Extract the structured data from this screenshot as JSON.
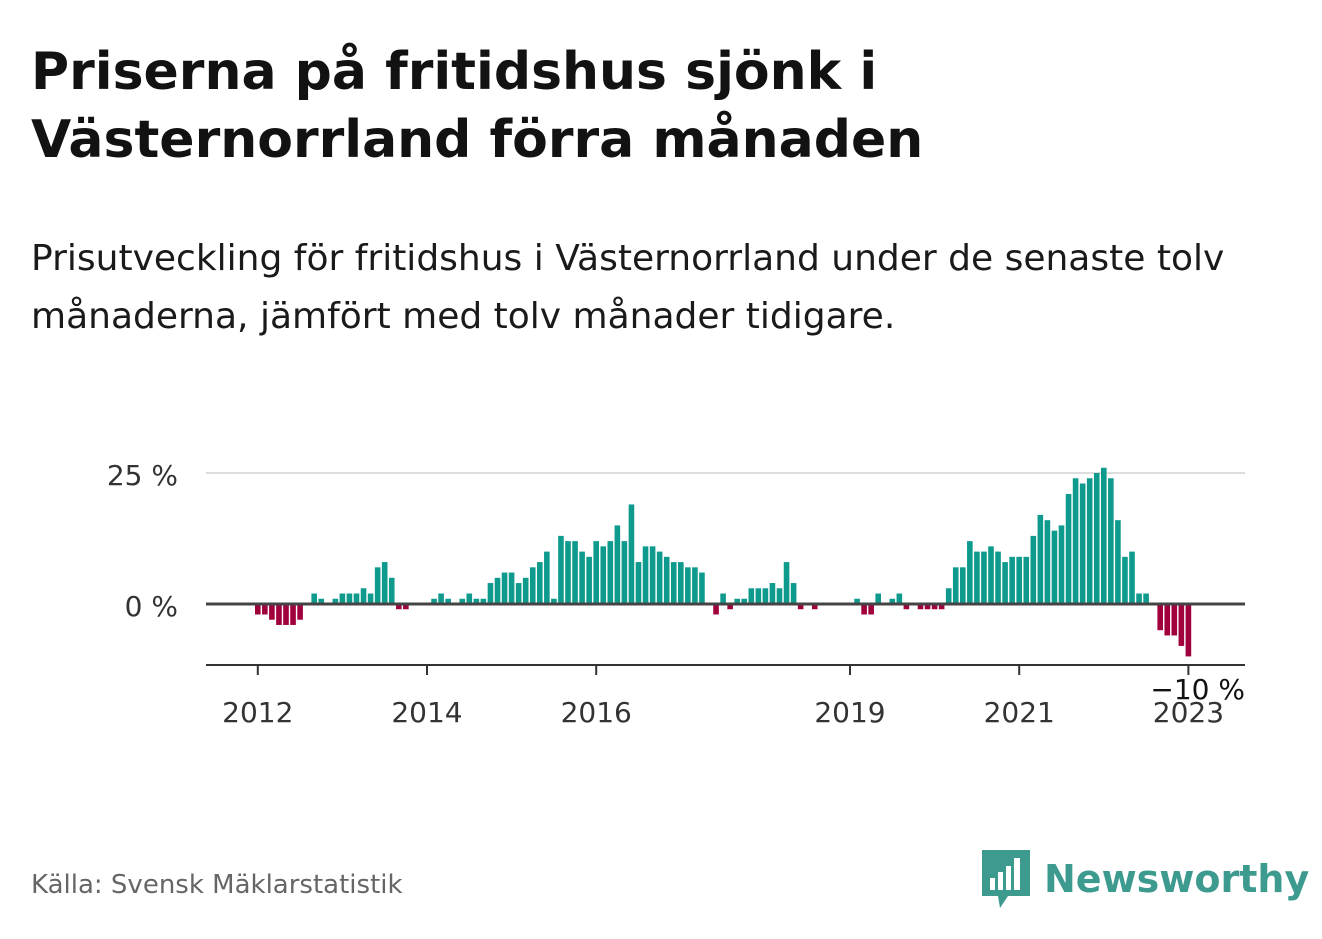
{
  "title": "Priserna på fritidshus sjönk i Västernorrland förra månaden",
  "subtitle": "Prisutveckling för fritidshus i Västernorrland under de senaste tolv månaderna, jämfört med tolv månader tidigare.",
  "source": "Källa: Svensk Mäklarstatistik",
  "brand": {
    "name": "Newsworthy",
    "color": "#3d9a8f",
    "icon": "newsworthy-logo-icon"
  },
  "colors": {
    "positive": "#0f9a8e",
    "negative": "#a0003c",
    "zero_line": "#444444",
    "grid": "#dddddd"
  },
  "chart_data": {
    "type": "bar",
    "ylabel": "",
    "xlabel": "",
    "ylim": [
      -10,
      25
    ],
    "y_ticks": [
      {
        "value": 25,
        "label": "25 %"
      },
      {
        "value": 0,
        "label": "0 %"
      }
    ],
    "x_ticks": [
      {
        "index": 0,
        "label": "2012"
      },
      {
        "index": 24,
        "label": "2014"
      },
      {
        "index": 48,
        "label": "2016"
      },
      {
        "index": 84,
        "label": "2019"
      },
      {
        "index": 108,
        "label": "2021"
      },
      {
        "index": 132,
        "label": "2023"
      }
    ],
    "last_value_label": "−10 %",
    "values": [
      -2,
      -2,
      -3,
      -4,
      -4,
      -4,
      -3,
      0,
      2,
      1,
      0,
      1,
      2,
      2,
      2,
      3,
      2,
      7,
      8,
      5,
      -1,
      -1,
      0,
      0,
      0,
      1,
      2,
      1,
      0,
      1,
      2,
      1,
      1,
      4,
      5,
      6,
      6,
      4,
      5,
      7,
      8,
      10,
      1,
      13,
      12,
      12,
      10,
      9,
      12,
      11,
      12,
      15,
      12,
      19,
      8,
      11,
      11,
      10,
      9,
      8,
      8,
      7,
      7,
      6,
      0,
      -2,
      2,
      -1,
      1,
      1,
      3,
      3,
      3,
      4,
      3,
      8,
      4,
      -1,
      0,
      -1,
      0,
      0,
      0,
      0,
      0,
      1,
      -2,
      -2,
      2,
      0,
      1,
      2,
      -1,
      0,
      -1,
      -1,
      -1,
      -1,
      3,
      7,
      7,
      12,
      10,
      10,
      11,
      10,
      8,
      9,
      9,
      9,
      13,
      17,
      16,
      14,
      15,
      21,
      24,
      23,
      24,
      25,
      26,
      24,
      16,
      9,
      10,
      2,
      2,
      0,
      -5,
      -6,
      -6,
      -8,
      -10
    ]
  }
}
